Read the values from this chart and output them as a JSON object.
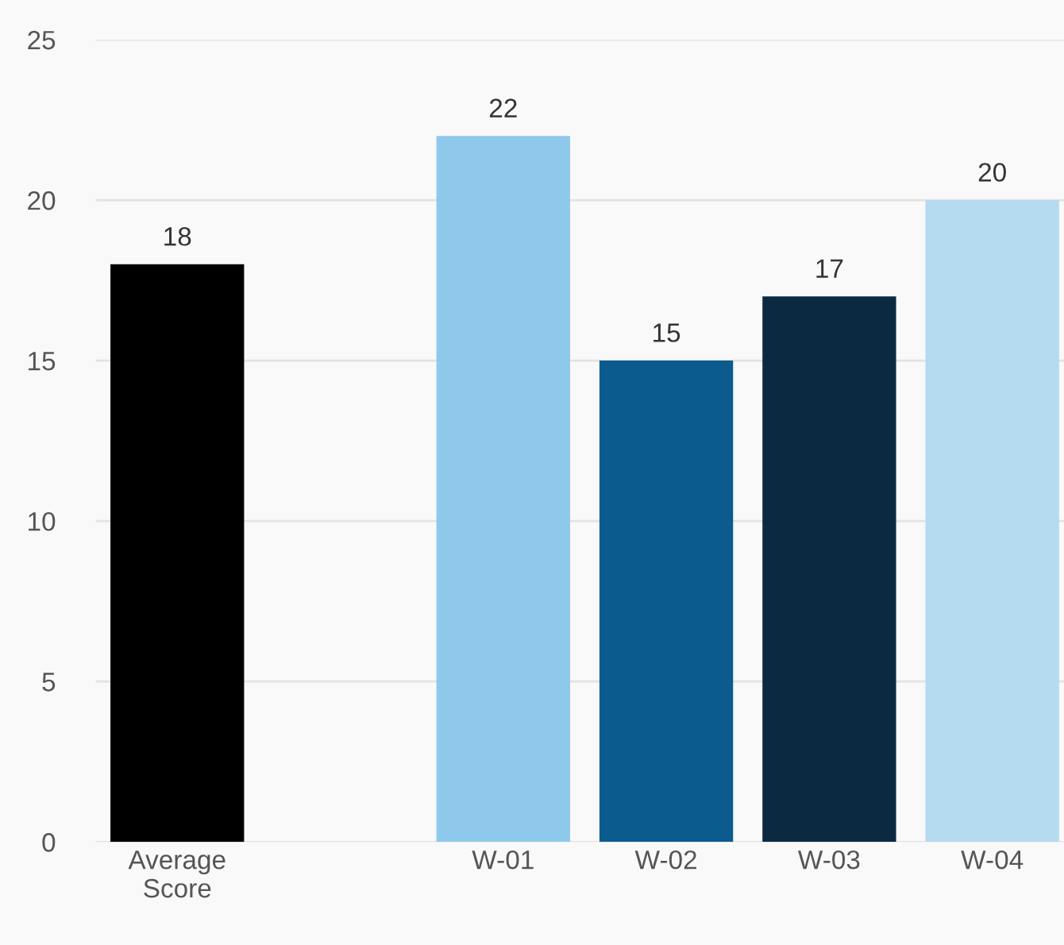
{
  "chart_data": {
    "type": "bar",
    "categories": [
      "Average\nScore",
      null,
      "W-01",
      "W-02",
      "W-03",
      "W-04"
    ],
    "values": [
      18,
      null,
      22,
      15,
      17,
      20
    ],
    "colors": [
      "#000000",
      "#000000",
      "#8ec9ec",
      "#0b5b8e",
      "#0b2a42",
      "#b5dbf1"
    ],
    "ylim": [
      0,
      25
    ],
    "yticks": [
      0,
      5,
      10,
      15,
      20,
      25
    ],
    "grid": "y",
    "data_labels": true,
    "legend": false
  }
}
